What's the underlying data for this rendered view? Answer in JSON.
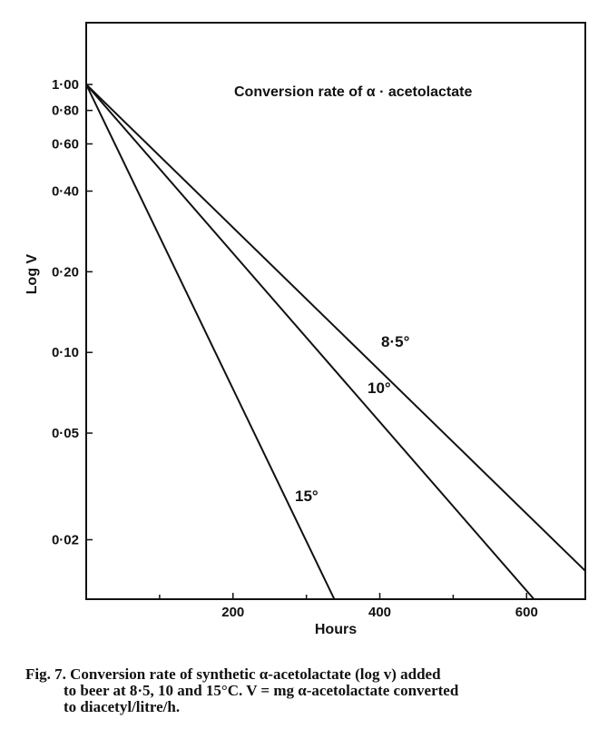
{
  "chart_data": {
    "type": "line",
    "title": "Conversion rate of α · acetolactate",
    "xlabel": "Hours",
    "ylabel": "Log V",
    "xlim": [
      0,
      680
    ],
    "ylim": [
      0.012,
      1.7
    ],
    "yscale": "log",
    "x_ticks": [
      200,
      400,
      600
    ],
    "x_minor_ticks": [
      100,
      300,
      500
    ],
    "x_tick_labels": [
      "200",
      "400",
      "600"
    ],
    "y_ticks": [
      1.0,
      0.8,
      0.6,
      0.4,
      0.2,
      0.1,
      0.05,
      0.02
    ],
    "y_tick_labels": [
      "1·00",
      "0·80",
      "0·60",
      "0·40",
      "0·20",
      "0·10",
      "0·05",
      "0·02"
    ],
    "series": [
      {
        "name": "8·5°",
        "label": "8·5°",
        "x": [
          0,
          680
        ],
        "y": [
          1.0,
          0.0153
        ]
      },
      {
        "name": "10°",
        "label": "10°",
        "x": [
          0,
          610
        ],
        "y": [
          1.0,
          0.012
        ]
      },
      {
        "name": "15°",
        "label": "15°",
        "x": [
          0,
          338
        ],
        "y": [
          1.0,
          0.012
        ]
      }
    ]
  },
  "caption": {
    "line1": "Fig. 7. Conversion rate of synthetic α-acetolactate (log v) added",
    "line2": "to beer at 8·5, 10 and 15°C. V = mg α-acetolactate converted",
    "line3": "to diacetyl/litre/h."
  }
}
